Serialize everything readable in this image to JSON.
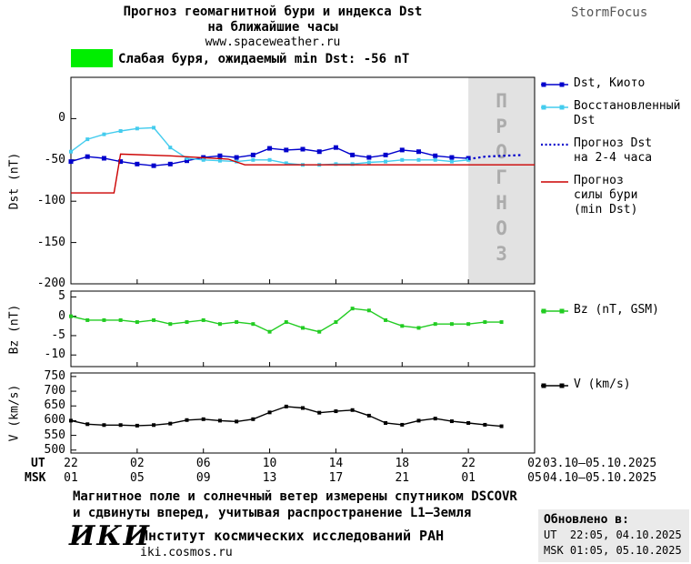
{
  "header": {
    "title_line1": "Прогноз геомагнитной бури и индекса Dst",
    "title_line2": "на ближайшие часы",
    "website": "www.spaceweather.ru",
    "brand": "StormFocus"
  },
  "alert": {
    "text": "Слабая буря, ожидаемый min Dst: -56 nT",
    "color": "#00EE00"
  },
  "chart_data": [
    {
      "type": "line",
      "name": "dst",
      "ylabel": "Dst (nT)",
      "xlim": [
        0,
        28
      ],
      "ylim": [
        -200,
        50
      ],
      "yticks": [
        0,
        -50,
        -100,
        -150,
        -200
      ],
      "forecast_band": {
        "start": 24,
        "end": 28,
        "label": "ПРОГНОЗ"
      },
      "series": [
        {
          "name": "Dst, Киото",
          "color": "#0000CC",
          "marker": "square",
          "marker_size": 5,
          "x": [
            0,
            1,
            2,
            3,
            4,
            5,
            6,
            7,
            8,
            9,
            10,
            11,
            12,
            13,
            14,
            15,
            16,
            17,
            18,
            19,
            20,
            21,
            22,
            23,
            24
          ],
          "values": [
            -52,
            -46,
            -48,
            -52,
            -55,
            -57,
            -55,
            -51,
            -47,
            -45,
            -47,
            -44,
            -36,
            -38,
            -37,
            -40,
            -35,
            -44,
            -47,
            -44,
            -38,
            -40,
            -45,
            -47,
            -48
          ]
        },
        {
          "name": "Восстановленный Dst",
          "color": "#44CCEE",
          "marker": "square",
          "marker_size": 4,
          "x": [
            0,
            1,
            2,
            3,
            4,
            5,
            6,
            7,
            8,
            9,
            10,
            11,
            12,
            13,
            14,
            15,
            16,
            17,
            18,
            19,
            20,
            21,
            22,
            23,
            24
          ],
          "values": [
            -40,
            -25,
            -19,
            -15,
            -12,
            -11,
            -35,
            -48,
            -50,
            -51,
            -52,
            -50,
            -50,
            -54,
            -56,
            -56,
            -55,
            -55,
            -53,
            -52,
            -50,
            -50,
            -50,
            -52,
            -50
          ]
        },
        {
          "name": "Прогноз Dst на 2-4 часа",
          "color": "#0000CC",
          "dash": "2.5 3",
          "width": 2.2,
          "x": [
            24,
            25,
            26,
            27.3
          ],
          "values": [
            -49,
            -46,
            -45,
            -44
          ]
        },
        {
          "name": "Прогноз силы бури (min Dst)",
          "color": "#CC0000",
          "width": 1.4,
          "x": [
            0,
            2.6,
            3,
            6,
            9.5,
            10.5,
            28
          ],
          "values": [
            -90,
            -90,
            -43,
            -45,
            -49,
            -56,
            -56
          ]
        }
      ],
      "legend": [
        {
          "lines": [
            "Dst, Киото"
          ],
          "color": "#0000CC",
          "style": "marker-line"
        },
        {
          "lines": [
            "Восстановленный",
            "Dst"
          ],
          "color": "#44CCEE",
          "style": "marker-line"
        },
        {
          "lines": [
            "Прогноз Dst",
            "на 2-4 часа"
          ],
          "color": "#0000CC",
          "style": "dotted"
        },
        {
          "lines": [
            "Прогноз",
            "силы бури",
            "(min Dst)"
          ],
          "color": "#CC0000",
          "style": "line"
        }
      ]
    },
    {
      "type": "line",
      "name": "bz",
      "ylabel": "Bz (nT)",
      "xlim": [
        0,
        28
      ],
      "ylim": [
        -13,
        6.5
      ],
      "yticks": [
        5,
        0,
        -5,
        -10
      ],
      "series": [
        {
          "name": "Bz (nT, GSM)",
          "color": "#22CC22",
          "marker": "square",
          "marker_size": 4,
          "x": [
            0,
            1,
            2,
            3,
            4,
            5,
            6,
            7,
            8,
            9,
            10,
            11,
            12,
            13,
            14,
            15,
            16,
            17,
            18,
            19,
            20,
            21,
            22,
            23,
            24,
            25,
            26
          ],
          "values": [
            0,
            -1,
            -1,
            -1,
            -1.5,
            -1,
            -2,
            -1.5,
            -1,
            -2,
            -1.5,
            -2,
            -4,
            -1.5,
            -3,
            -4,
            -1.5,
            2,
            1.5,
            -1,
            -2.5,
            -3,
            -2,
            -2,
            -2,
            -1.5,
            -1.5
          ]
        }
      ],
      "legend": [
        {
          "lines": [
            "Bz (nT, GSM)"
          ],
          "color": "#22CC22",
          "style": "marker-line"
        }
      ]
    },
    {
      "type": "line",
      "name": "v",
      "ylabel": "V (km/s)",
      "xlim": [
        0,
        28
      ],
      "ylim": [
        490,
        762
      ],
      "yticks": [
        750,
        700,
        650,
        600,
        550,
        500
      ],
      "series": [
        {
          "name": "V (km/s)",
          "color": "#000000",
          "marker": "square",
          "marker_size": 4,
          "x": [
            0,
            1,
            2,
            3,
            4,
            5,
            6,
            7,
            8,
            9,
            10,
            11,
            12,
            13,
            14,
            15,
            16,
            17,
            18,
            19,
            20,
            21,
            22,
            23,
            24,
            25,
            26
          ],
          "values": [
            600,
            588,
            585,
            585,
            583,
            585,
            590,
            602,
            605,
            600,
            597,
            605,
            628,
            648,
            643,
            627,
            632,
            636,
            617,
            592,
            586,
            600,
            607,
            598,
            592,
            586,
            581
          ]
        }
      ],
      "legend": [
        {
          "lines": [
            "V (km/s)"
          ],
          "color": "#000000",
          "style": "marker-line"
        }
      ]
    }
  ],
  "xaxis": {
    "tick_hours": [
      0,
      4,
      8,
      12,
      16,
      20,
      24,
      28
    ],
    "ut_label": "UT",
    "msk_label": "MSK",
    "ut_ticks": [
      "22",
      "02",
      "06",
      "10",
      "14",
      "18",
      "22",
      "02"
    ],
    "msk_ticks": [
      "01",
      "05",
      "09",
      "13",
      "17",
      "21",
      "01",
      "05"
    ],
    "ut_range": "03.10–05.10.2025",
    "msk_range": "04.10–05.10.2025"
  },
  "footnote": {
    "line1": "Магнитное поле и солнечный ветер измерены спутником DSCOVR",
    "line2": "и сдвинуты вперед, учитывая распространение L1–Земля"
  },
  "org": {
    "logo": "ИКИ",
    "name": "Институт космических исследований РАН",
    "site": "iki.cosmos.ru"
  },
  "updated": {
    "label": "Обновлено в:",
    "ut": "UT  22:05, 04.10.2025",
    "msk": "MSK 01:05, 05.10.2025"
  }
}
